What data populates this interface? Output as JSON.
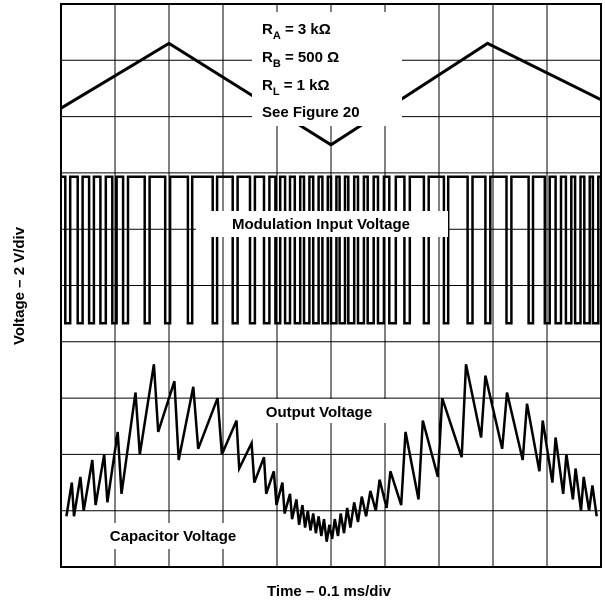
{
  "chart_data": {
    "type": "line",
    "title": "",
    "xlabel": "Time – 0.1 ms/div",
    "ylabel": "Voltage – 2 V/div",
    "grid": true,
    "grid_divisions": {
      "x": 10,
      "y": 10
    },
    "x_range_div": [
      0,
      10
    ],
    "y_range_div": [
      0,
      10
    ],
    "annotations": {
      "ra": {
        "sym": "R",
        "sub": "A",
        "val": " = 3 kΩ"
      },
      "rb": {
        "sym": "R",
        "sub": "B",
        "val": " = 500 Ω"
      },
      "rl": {
        "sym": "R",
        "sub": "L",
        "val": " = 1 kΩ"
      },
      "fig": "See Figure 20"
    },
    "series": [
      {
        "name": "Modulation Input Voltage",
        "color": "#000000",
        "x": [
          0,
          2.0,
          5.0,
          7.9,
          10
        ],
        "y": [
          8.15,
          9.3,
          7.5,
          9.3,
          8.3
        ]
      },
      {
        "name": "Output Voltage",
        "color": "#000000",
        "high": 6.93,
        "low": 4.33,
        "transitions": [
          0.08,
          0.17,
          0.31,
          0.4,
          0.52,
          0.61,
          0.73,
          0.83,
          0.95,
          1.03,
          1.15,
          1.24,
          1.55,
          1.64,
          1.93,
          2.02,
          2.35,
          2.43,
          2.81,
          2.89,
          3.18,
          3.27,
          3.5,
          3.59,
          3.76,
          3.86,
          3.97,
          4.06,
          4.15,
          4.24,
          4.33,
          4.43,
          4.5,
          4.6,
          4.67,
          4.77,
          4.84,
          4.94,
          5.0,
          5.1,
          5.16,
          5.26,
          5.32,
          5.43,
          5.5,
          5.61,
          5.68,
          5.79,
          5.87,
          5.98,
          6.08,
          6.2,
          6.36,
          6.46,
          6.72,
          6.81,
          7.09,
          7.17,
          7.53,
          7.62,
          7.86,
          7.95,
          8.25,
          8.34,
          8.66,
          8.74,
          8.96,
          9.05,
          9.16,
          9.26,
          9.35,
          9.45,
          9.52,
          9.62,
          9.69,
          9.79,
          9.85,
          9.95
        ]
      },
      {
        "name": "Capacitor Voltage",
        "color": "#000000",
        "x": [
          0.1,
          0.2,
          0.24,
          0.36,
          0.42,
          0.58,
          0.64,
          0.8,
          0.86,
          1.05,
          1.12,
          1.38,
          1.46,
          1.72,
          1.8,
          2.1,
          2.18,
          2.45,
          2.54,
          2.9,
          2.98,
          3.25,
          3.3,
          3.53,
          3.58,
          3.76,
          3.8,
          3.94,
          3.99,
          4.1,
          4.14,
          4.24,
          4.28,
          4.36,
          4.41,
          4.47,
          4.52,
          4.57,
          4.62,
          4.67,
          4.72,
          4.77,
          4.82,
          4.87,
          4.92,
          4.97,
          5.02,
          5.07,
          5.13,
          5.18,
          5.24,
          5.3,
          5.36,
          5.43,
          5.5,
          5.57,
          5.65,
          5.73,
          5.83,
          5.9,
          6.03,
          6.1,
          6.3,
          6.38,
          6.62,
          6.7,
          6.98,
          7.06,
          7.42,
          7.5,
          7.78,
          7.86,
          8.17,
          8.26,
          8.55,
          8.63,
          8.86,
          8.92,
          9.1,
          9.16,
          9.3,
          9.36,
          9.48,
          9.53,
          9.63,
          9.68,
          9.78,
          9.84,
          9.92
        ],
        "y": [
          0.9,
          1.5,
          0.9,
          1.6,
          1.0,
          1.9,
          1.1,
          2.0,
          1.15,
          2.4,
          1.3,
          3.1,
          2.0,
          3.6,
          2.4,
          3.3,
          1.9,
          3.2,
          2.1,
          3.0,
          2.0,
          2.6,
          1.75,
          2.2,
          1.5,
          1.95,
          1.3,
          1.7,
          1.1,
          1.5,
          0.95,
          1.3,
          0.85,
          1.2,
          0.75,
          1.1,
          0.7,
          1.0,
          0.65,
          0.95,
          0.6,
          0.9,
          0.55,
          0.85,
          0.45,
          0.75,
          0.5,
          0.85,
          0.55,
          0.95,
          0.6,
          1.05,
          0.7,
          1.15,
          0.8,
          1.25,
          0.9,
          1.35,
          1.0,
          1.55,
          1.05,
          1.7,
          1.1,
          2.4,
          1.2,
          2.6,
          1.6,
          3.0,
          1.95,
          3.6,
          2.3,
          3.4,
          2.1,
          3.1,
          1.9,
          2.9,
          1.7,
          2.6,
          1.5,
          2.3,
          1.3,
          2.0,
          1.2,
          1.75,
          1.0,
          1.6,
          1.0,
          1.45,
          0.9
        ]
      }
    ],
    "labels": {
      "mod": "Modulation Input Voltage",
      "out": "Output Voltage",
      "cap": "Capacitor Voltage"
    }
  }
}
